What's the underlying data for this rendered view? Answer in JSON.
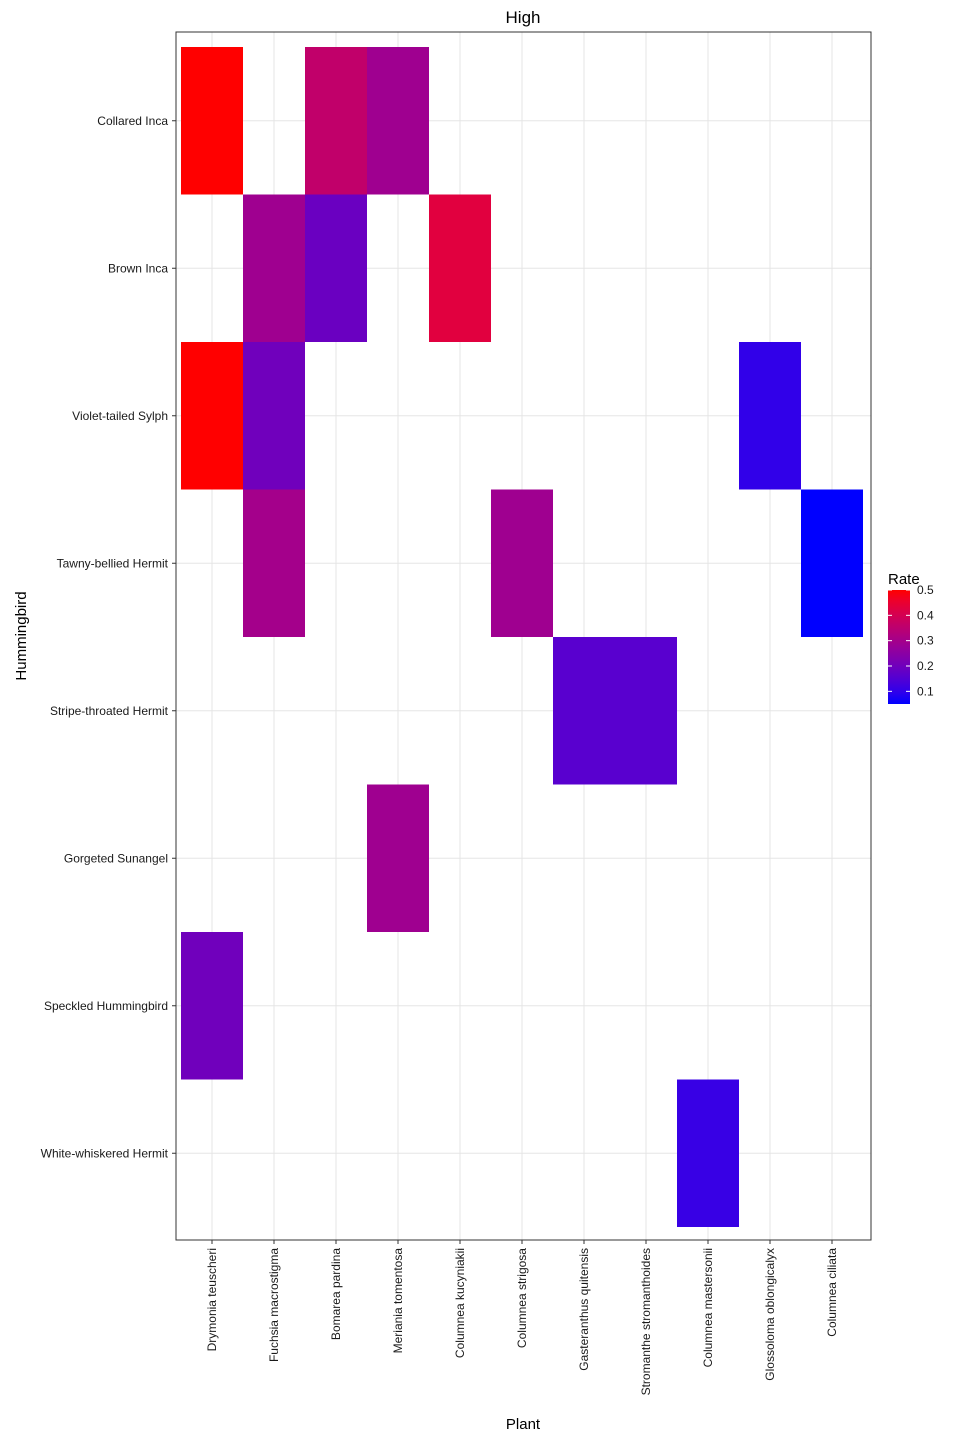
{
  "chart_data": {
    "type": "heatmap",
    "title": "High",
    "xlabel": "Plant",
    "ylabel": "Hummingbird",
    "x_categories": [
      "Drymonia teuscheri",
      "Fuchsia macrostigma",
      "Bomarea pardina",
      "Meriania tomentosa",
      "Columnea kucyniakii",
      "Columnea strigosa",
      "Gasteranthus quitensis",
      "Stromanthe stromanthoides",
      "Columnea mastersonii",
      "Glossoloma oblongicalyx",
      "Columnea ciliata"
    ],
    "y_categories": [
      "Collared Inca",
      "Brown Inca",
      "Violet-tailed Sylph",
      "Tawny-bellied Hermit",
      "Stripe-throated Hermit",
      "Gorgeted Sunangel",
      "Speckled Hummingbird",
      "White-whiskered Hermit"
    ],
    "cells": [
      {
        "x": "Drymonia teuscheri",
        "y": "Collared Inca",
        "value": 0.5
      },
      {
        "x": "Bomarea pardina",
        "y": "Collared Inca",
        "value": 0.36
      },
      {
        "x": "Meriania tomentosa",
        "y": "Collared Inca",
        "value": 0.29
      },
      {
        "x": "Fuchsia macrostigma",
        "y": "Brown Inca",
        "value": 0.29
      },
      {
        "x": "Bomarea pardina",
        "y": "Brown Inca",
        "value": 0.19
      },
      {
        "x": "Columnea kucyniakii",
        "y": "Brown Inca",
        "value": 0.43
      },
      {
        "x": "Drymonia teuscheri",
        "y": "Violet-tailed Sylph",
        "value": 0.5
      },
      {
        "x": "Fuchsia macrostigma",
        "y": "Violet-tailed Sylph",
        "value": 0.2
      },
      {
        "x": "Glossoloma oblongicalyx",
        "y": "Violet-tailed Sylph",
        "value": 0.1
      },
      {
        "x": "Fuchsia macrostigma",
        "y": "Tawny-bellied Hermit",
        "value": 0.3
      },
      {
        "x": "Columnea strigosa",
        "y": "Tawny-bellied Hermit",
        "value": 0.29
      },
      {
        "x": "Columnea ciliata",
        "y": "Tawny-bellied Hermit",
        "value": 0.05
      },
      {
        "x": "Gasteranthus quitensis",
        "y": "Stripe-throated Hermit",
        "value": 0.16
      },
      {
        "x": "Stromanthe stromanthoides",
        "y": "Stripe-throated Hermit",
        "value": 0.16
      },
      {
        "x": "Meriania tomentosa",
        "y": "Gorgeted Sunangel",
        "value": 0.29
      },
      {
        "x": "Drymonia teuscheri",
        "y": "Speckled Hummingbird",
        "value": 0.2
      },
      {
        "x": "Columnea mastersonii",
        "y": "White-whiskered Hermit",
        "value": 0.11
      }
    ],
    "legend": {
      "title": "Rate",
      "ticks": [
        0.1,
        0.2,
        0.3,
        0.4,
        0.5
      ],
      "tick_labels": [
        "0.1",
        "0.2",
        "0.3",
        "0.4",
        "0.5"
      ],
      "range": [
        0.05,
        0.5
      ],
      "low_color": "#0000ff",
      "high_color": "#ff0000",
      "placement": "right"
    },
    "grid": true,
    "panel_border": true,
    "x_tick_rotation": "vertical"
  }
}
